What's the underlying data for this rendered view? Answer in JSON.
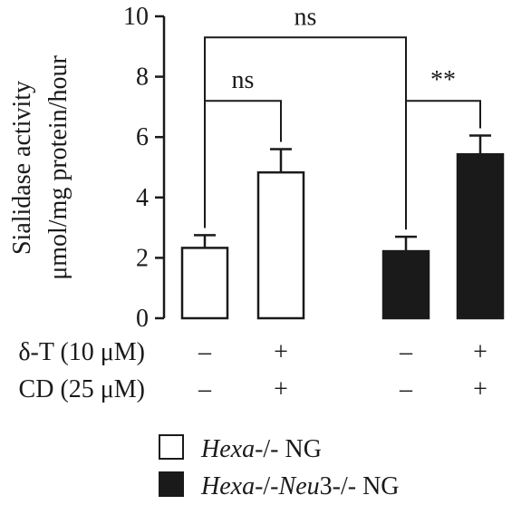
{
  "chart_data": {
    "type": "bar",
    "title": "",
    "ylabel_line1": "Sialidase activity",
    "ylabel_line2": "μmol/mg protein/hour",
    "xlabel": "",
    "ylim": [
      0,
      10
    ],
    "yticks": [
      0,
      2,
      4,
      6,
      8,
      10
    ],
    "grid": false,
    "legend_position": "bottom",
    "bars": [
      {
        "series": "Hexa-/- NG",
        "value": 2.33,
        "error": 0.42,
        "fill": "#ffffff"
      },
      {
        "series": "Hexa-/- NG",
        "value": 4.83,
        "error": 0.77,
        "fill": "#ffffff"
      },
      {
        "series": "Hexa-/-Neu3-/- NG",
        "value": 2.22,
        "error": 0.48,
        "fill": "#1a1a1a"
      },
      {
        "series": "Hexa-/-Neu3-/- NG",
        "value": 5.43,
        "error": 0.62,
        "fill": "#1a1a1a"
      }
    ],
    "conditions": {
      "rows": [
        {
          "label": "δ-T (10 μM)",
          "values": [
            "–",
            "+",
            "–",
            "+"
          ]
        },
        {
          "label": "CD (25 μM)",
          "values": [
            "–",
            "+",
            "–",
            "+"
          ]
        }
      ]
    },
    "significance": [
      {
        "from": 0,
        "to": 1,
        "label": "ns",
        "level": 7.2
      },
      {
        "from": 2,
        "to": 3,
        "label": "**",
        "level": 7.2
      },
      {
        "from": 0,
        "to": 2,
        "label": "ns",
        "level": 9.3
      }
    ],
    "legend": [
      {
        "pre": "Hexa",
        "mid": "-/-",
        "mid2": "",
        "mid3": "",
        "post": " NG",
        "fill": "#ffffff"
      },
      {
        "pre": "Hexa",
        "mid": "-/-",
        "mid2": "Neu",
        "mid3": "3-/-",
        "post": " NG",
        "fill": "#1a1a1a"
      }
    ]
  }
}
